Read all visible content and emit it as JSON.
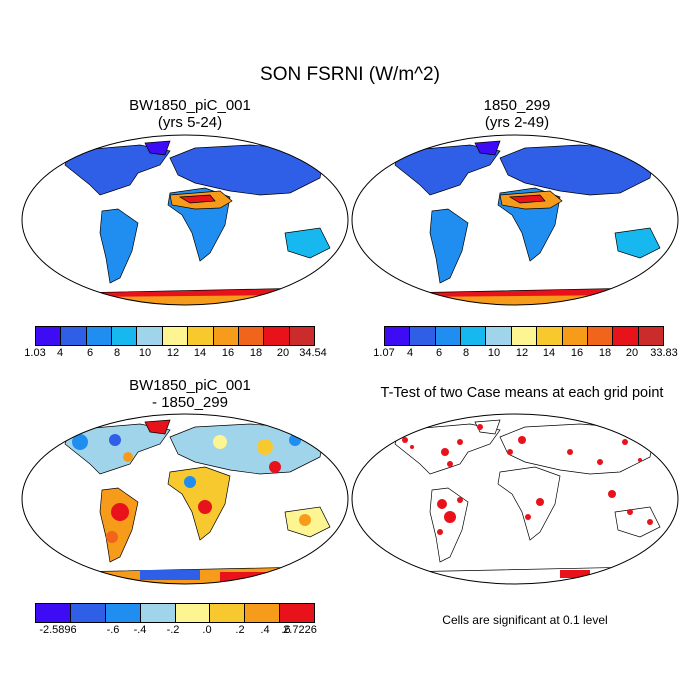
{
  "title": "SON FSRNI (W/m^2)",
  "panels": [
    {
      "id": "p1",
      "title_line1": "BW1850_piC_001",
      "title_line2": "(yrs 5-24)"
    },
    {
      "id": "p2",
      "title_line1": "1850_299",
      "title_line2": "(yrs 2-49)"
    },
    {
      "id": "p3",
      "title_line1": "BW1850_piC_001",
      "title_line2": "- 1850_299"
    },
    {
      "id": "p4",
      "title_line1": "T-Test of two Case means at each grid point"
    }
  ],
  "colorbars": {
    "cb1": {
      "labels": [
        "1.03",
        "4",
        "6",
        "8",
        "10",
        "12",
        "14",
        "16",
        "18",
        "20",
        "34.54"
      ]
    },
    "cb2": {
      "labels": [
        "1.07",
        "4",
        "6",
        "8",
        "10",
        "12",
        "14",
        "16",
        "18",
        "20",
        "33.83"
      ]
    },
    "cb3": {
      "labels": [
        "-2.5896",
        "-.6",
        "-.4",
        "-.2",
        ".0",
        ".2",
        ".4",
        ".6",
        "2.7226"
      ]
    }
  },
  "colors": {
    "abs_scale": [
      "#3d0cf5",
      "#2f5fe6",
      "#1f8ef0",
      "#17b8f0",
      "#9fd4ea",
      "#fcf591",
      "#f7c92e",
      "#f79c1a",
      "#f0641b",
      "#e8121b",
      "#cc2b2b"
    ],
    "diff_scale": [
      "#3d0cf5",
      "#2f5fe6",
      "#1f8ef0",
      "#9fd4ea",
      "#fcf591",
      "#f7c92e",
      "#f79c1a",
      "#e8121b"
    ],
    "significance": "#e8121b"
  },
  "note": "Cells are significant at 0.1 level"
}
